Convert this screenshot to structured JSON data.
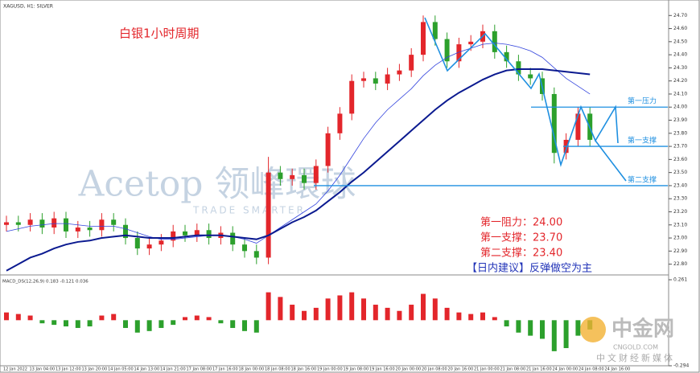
{
  "chart_data": {
    "type": "candlestick",
    "title": "XAGUSD, H1: SILVER",
    "annotation": "白银1小时周期",
    "open": [
      23.1,
      23.12,
      23.1,
      23.14,
      23.08,
      23.15,
      23.05,
      23.08,
      23.06,
      23.14,
      23.1,
      23.0,
      22.92,
      22.95,
      22.98,
      23.05,
      23.02,
      23.06,
      23.0,
      23.04,
      22.95,
      22.9,
      22.85,
      23.5,
      23.45,
      23.48,
      23.42,
      23.55,
      23.8,
      23.95,
      24.2,
      24.22,
      24.18,
      24.25,
      24.28,
      24.4,
      24.65,
      24.52,
      24.35,
      24.48,
      24.5,
      24.58,
      24.42,
      24.35,
      24.25,
      24.22,
      24.1,
      23.65,
      23.75,
      23.95
    ],
    "high": [
      23.17,
      23.17,
      23.19,
      23.19,
      23.2,
      23.2,
      23.13,
      23.13,
      23.19,
      23.19,
      23.15,
      23.05,
      23.0,
      23.03,
      23.1,
      23.1,
      23.11,
      23.11,
      23.09,
      23.09,
      23.0,
      22.95,
      23.62,
      23.55,
      23.53,
      23.53,
      23.6,
      23.85,
      24.0,
      24.25,
      24.27,
      24.27,
      24.3,
      24.33,
      24.45,
      24.7,
      24.7,
      24.57,
      24.53,
      24.55,
      24.63,
      24.63,
      24.47,
      24.4,
      24.3,
      24.27,
      24.15,
      23.8,
      24.0,
      24.0
    ],
    "low": [
      23.05,
      23.05,
      23.05,
      23.03,
      23.03,
      23.0,
      23.0,
      23.01,
      23.01,
      23.05,
      22.95,
      22.87,
      22.87,
      22.9,
      22.93,
      22.97,
      22.97,
      22.95,
      22.95,
      22.9,
      22.85,
      22.8,
      22.8,
      23.4,
      23.4,
      23.37,
      23.37,
      23.5,
      23.75,
      23.9,
      24.15,
      24.13,
      24.13,
      24.2,
      24.23,
      24.35,
      24.47,
      24.3,
      24.3,
      24.43,
      24.45,
      24.37,
      24.3,
      24.2,
      24.17,
      24.05,
      23.57,
      23.6,
      23.7,
      23.7
    ],
    "close": [
      23.12,
      23.1,
      23.14,
      23.08,
      23.15,
      23.05,
      23.08,
      23.06,
      23.14,
      23.1,
      23.0,
      22.92,
      22.95,
      22.98,
      23.05,
      23.02,
      23.06,
      23.0,
      23.04,
      22.95,
      22.9,
      22.85,
      23.5,
      23.45,
      23.48,
      23.42,
      23.55,
      23.8,
      23.95,
      24.2,
      24.22,
      24.18,
      24.25,
      24.28,
      24.4,
      24.65,
      24.52,
      24.35,
      24.48,
      24.5,
      24.58,
      24.42,
      24.35,
      24.25,
      24.22,
      24.1,
      23.65,
      23.75,
      23.95,
      23.75
    ],
    "up_color": "#e3262b",
    "down_color": "#2ca02c",
    "moving_averages": [
      {
        "color": "#3344dd",
        "width": 0.8,
        "values": [
          23.05,
          23.07,
          23.09,
          23.1,
          23.11,
          23.11,
          23.1,
          23.09,
          23.09,
          23.09,
          23.07,
          23.04,
          23.01,
          22.99,
          22.99,
          23.0,
          23.01,
          23.02,
          23.02,
          23.01,
          22.99,
          22.96,
          23.02,
          23.08,
          23.14,
          23.2,
          23.26,
          23.36,
          23.48,
          23.62,
          23.76,
          23.88,
          23.98,
          24.06,
          24.14,
          24.24,
          24.32,
          24.38,
          24.42,
          24.45,
          24.48,
          24.49,
          24.48,
          24.46,
          24.43,
          24.38,
          24.3,
          24.22,
          24.16,
          24.1
        ]
      },
      {
        "color": "#0b1a90",
        "width": 2,
        "values": [
          22.75,
          22.8,
          22.85,
          22.88,
          22.92,
          22.95,
          22.97,
          22.98,
          23.0,
          23.01,
          23.02,
          23.01,
          23.0,
          23.0,
          23.0,
          23.01,
          23.02,
          23.02,
          23.02,
          23.01,
          23.0,
          22.99,
          23.02,
          23.07,
          23.12,
          23.16,
          23.21,
          23.28,
          23.35,
          23.43,
          23.5,
          23.58,
          23.66,
          23.74,
          23.82,
          23.9,
          23.98,
          24.05,
          24.11,
          24.16,
          24.21,
          24.25,
          24.28,
          24.29,
          24.29,
          24.29,
          24.28,
          24.27,
          24.26,
          24.25
        ]
      }
    ],
    "ylim": [
      22.73,
      24.8
    ],
    "yticks": [
      {
        "value": 22.8,
        "label": "22.80"
      },
      {
        "value": 22.9,
        "label": "22.90"
      },
      {
        "value": 23.0,
        "label": "23.00"
      },
      {
        "value": 23.1,
        "label": "23.10"
      },
      {
        "value": 23.2,
        "label": "23.20"
      },
      {
        "value": 23.3,
        "label": "23.30"
      },
      {
        "value": 23.4,
        "label": "23.40"
      },
      {
        "value": 23.5,
        "label": "23.50"
      },
      {
        "value": 23.6,
        "label": "23.60"
      },
      {
        "value": 23.7,
        "label": "23.70"
      },
      {
        "value": 23.8,
        "label": "23.80"
      },
      {
        "value": 23.9,
        "label": "23.90"
      },
      {
        "value": 24.0,
        "label": "24.00"
      },
      {
        "value": 24.1,
        "label": "24.10"
      },
      {
        "value": 24.2,
        "label": "24.20"
      },
      {
        "value": 24.3,
        "label": "24.30"
      },
      {
        "value": 24.4,
        "label": "24.40"
      },
      {
        "value": 24.5,
        "label": "24.50"
      },
      {
        "value": 24.6,
        "label": "24.60"
      },
      {
        "value": 24.7,
        "label": "24.70"
      }
    ],
    "levels": [
      {
        "label": "第一压力",
        "value": 24.0
      },
      {
        "label": "第一支撑",
        "value": 23.7
      },
      {
        "label": "第二支撑",
        "value": 23.4
      }
    ],
    "level_color": "#1e8fe0",
    "notes": [
      "第一阻力：24.00",
      "第一支撑：23.70",
      "第二支撑：23.40"
    ],
    "advice": "【日内建议】反弹做空为主",
    "time_labels": [
      "12 Jan 2022",
      "13 Jan 04:00",
      "13 Jan 12:00",
      "13 Jan 20:00",
      "14 Jan 05:00",
      "14 Jan 13:00",
      "14 Jan 21:00",
      "17 Jan 08:00",
      "17 Jan 16:00",
      "18 Jan 00:00",
      "18 Jan 08:00",
      "18 Jan 16:00",
      "19 Jan 00:00",
      "19 Jan 08:00",
      "19 Jan 16:00",
      "20 Jan 00:00",
      "20 Jan 08:00",
      "20 Jan 16:00",
      "21 Jan 00:00",
      "21 Jan 08:00",
      "21 Jan 16:00",
      "24 Jan 00:00",
      "24 Jan 08:00",
      "24 Jan 16:00"
    ],
    "macd": {
      "title": "MACD_DS(12,26,9) 0.183 -0.121 0.036",
      "values": [
        0.05,
        0.04,
        0.03,
        -0.02,
        -0.03,
        -0.04,
        -0.05,
        -0.04,
        0.03,
        0.04,
        -0.05,
        -0.08,
        -0.07,
        -0.05,
        -0.03,
        0.02,
        0.03,
        0.02,
        -0.02,
        -0.05,
        -0.07,
        -0.08,
        0.18,
        0.15,
        0.1,
        0.06,
        0.08,
        0.14,
        0.16,
        0.18,
        0.14,
        0.1,
        0.08,
        0.06,
        0.1,
        0.17,
        0.14,
        0.08,
        0.05,
        0.04,
        0.05,
        0.02,
        -0.04,
        -0.08,
        -0.1,
        -0.12,
        -0.2,
        -0.18,
        -0.1,
        -0.06
      ],
      "ylim": [
        -0.294,
        0.261
      ],
      "yticks": [
        0.261,
        -0.294
      ]
    }
  },
  "watermark": {
    "brand": "Acetop 领峰環球",
    "slogan": "TRADE SMARTER",
    "site": "中金网",
    "url": "CNGOLD.COM",
    "tagline": "中文财经新媒体"
  }
}
